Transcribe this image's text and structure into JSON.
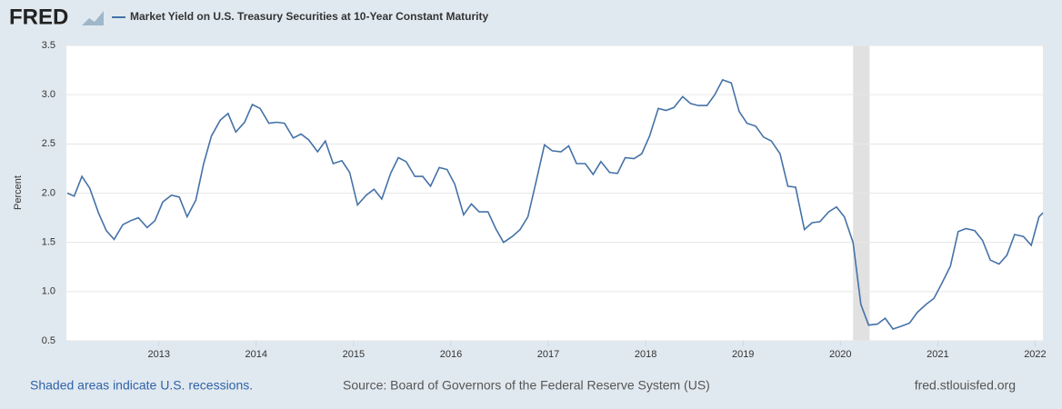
{
  "logo": "FRED",
  "footer": {
    "note": "Shaded areas indicate U.S. recessions.",
    "source": "Source: Board of Governors of the Federal Reserve System (US)",
    "url": "fred.stlouisfed.org"
  },
  "chart_data": {
    "type": "line",
    "ylabel": "Percent",
    "xlim": [
      2012.05,
      2022.08
    ],
    "xticks": [
      2013,
      2014,
      2015,
      2016,
      2017,
      2018,
      2019,
      2020,
      2021,
      2022
    ],
    "ylim": [
      0.5,
      3.5
    ],
    "yticks": [
      3.5,
      {
        "value": 3,
        "label": "3.0"
      },
      2.5,
      {
        "value": 2,
        "label": "2.0"
      },
      1.5,
      {
        "value": 1,
        "label": "1.0"
      },
      0.5
    ],
    "grid": true,
    "recessions": [
      [
        2020.13,
        2020.3
      ]
    ],
    "recession_color": "#e1e1e1",
    "x": [
      2012.06,
      2012.13,
      2012.21,
      2012.29,
      2012.38,
      2012.46,
      2012.54,
      2012.63,
      2012.71,
      2012.79,
      2012.88,
      2012.96,
      2013.04,
      2013.13,
      2013.21,
      2013.29,
      2013.38,
      2013.46,
      2013.54,
      2013.63,
      2013.71,
      2013.79,
      2013.88,
      2013.96,
      2014.04,
      2014.13,
      2014.21,
      2014.29,
      2014.38,
      2014.46,
      2014.54,
      2014.63,
      2014.71,
      2014.79,
      2014.88,
      2014.96,
      2015.04,
      2015.13,
      2015.21,
      2015.29,
      2015.38,
      2015.46,
      2015.54,
      2015.63,
      2015.71,
      2015.79,
      2015.88,
      2015.96,
      2016.04,
      2016.13,
      2016.21,
      2016.29,
      2016.38,
      2016.46,
      2016.54,
      2016.63,
      2016.71,
      2016.79,
      2016.88,
      2016.96,
      2017.04,
      2017.13,
      2017.21,
      2017.29,
      2017.38,
      2017.46,
      2017.54,
      2017.63,
      2017.71,
      2017.79,
      2017.88,
      2017.96,
      2018.04,
      2018.13,
      2018.21,
      2018.29,
      2018.38,
      2018.46,
      2018.54,
      2018.63,
      2018.71,
      2018.79,
      2018.88,
      2018.96,
      2019.04,
      2019.13,
      2019.21,
      2019.29,
      2019.38,
      2019.46,
      2019.54,
      2019.63,
      2019.71,
      2019.79,
      2019.88,
      2019.96,
      2020.04,
      2020.13,
      2020.21,
      2020.29,
      2020.38,
      2020.46,
      2020.54,
      2020.63,
      2020.71,
      2020.79,
      2020.88,
      2020.96,
      2021.04,
      2021.13,
      2021.21,
      2021.29,
      2021.38,
      2021.46,
      2021.54,
      2021.63,
      2021.71,
      2021.79,
      2021.88,
      2021.96,
      2022.04,
      2022.08
    ],
    "series": [
      {
        "name": "Market Yield on U.S. Treasury Securities at 10-Year Constant Maturity",
        "color": "#4572a7",
        "values": [
          2.0,
          1.97,
          2.17,
          2.05,
          1.8,
          1.62,
          1.53,
          1.68,
          1.72,
          1.75,
          1.65,
          1.72,
          1.91,
          1.98,
          1.96,
          1.76,
          1.93,
          2.3,
          2.58,
          2.74,
          2.81,
          2.62,
          2.72,
          2.9,
          2.86,
          2.71,
          2.72,
          2.71,
          2.56,
          2.6,
          2.54,
          2.42,
          2.53,
          2.3,
          2.33,
          2.21,
          1.88,
          1.98,
          2.04,
          1.94,
          2.2,
          2.36,
          2.32,
          2.17,
          2.17,
          2.07,
          2.26,
          2.24,
          2.09,
          1.78,
          1.89,
          1.81,
          1.81,
          1.64,
          1.5,
          1.56,
          1.63,
          1.76,
          2.14,
          2.49,
          2.43,
          2.42,
          2.48,
          2.3,
          2.3,
          2.19,
          2.32,
          2.21,
          2.2,
          2.36,
          2.35,
          2.4,
          2.58,
          2.86,
          2.84,
          2.87,
          2.98,
          2.91,
          2.89,
          2.89,
          3.0,
          3.15,
          3.12,
          2.83,
          2.71,
          2.68,
          2.57,
          2.53,
          2.4,
          2.07,
          2.06,
          1.63,
          1.7,
          1.71,
          1.81,
          1.86,
          1.76,
          1.5,
          0.87,
          0.66,
          0.67,
          0.73,
          0.62,
          0.65,
          0.68,
          0.79,
          0.87,
          0.93,
          1.08,
          1.26,
          1.61,
          1.64,
          1.62,
          1.52,
          1.32,
          1.28,
          1.37,
          1.58,
          1.56,
          1.47,
          1.76,
          1.8
        ]
      }
    ]
  }
}
